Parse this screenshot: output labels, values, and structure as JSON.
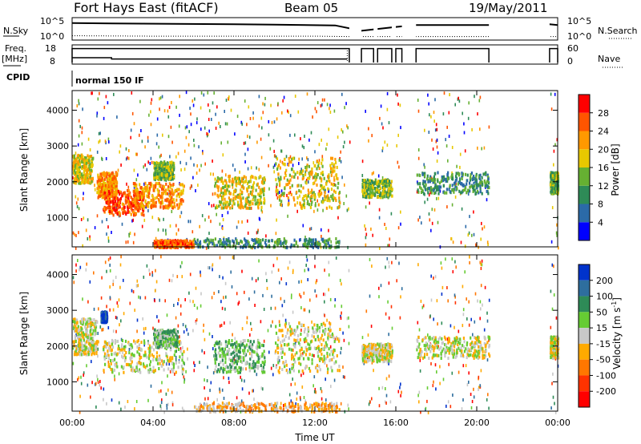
{
  "header": {
    "title": "Fort Hays East (fitACF)",
    "beam": "Beam 05",
    "date": "19/May/2011"
  },
  "top_panels": {
    "nsky_label": "N.Sky",
    "nsky_ticks": [
      "10^5",
      "10^0"
    ],
    "nsearch_label": "N.Search",
    "nsearch_ticks": [
      "10^5",
      "10^0"
    ],
    "freq_label": "Freq.",
    "freq_unit": "[MHz]",
    "freq_ticks": [
      "18",
      "8"
    ],
    "nave_label": "Nave",
    "nave_ticks": [
      "60",
      "0"
    ],
    "cpid_label": "CPID",
    "cpid_value": "normal 150 IF"
  },
  "colors": {
    "power": [
      "#0000ff",
      "#2b6aa8",
      "#2e8b57",
      "#66b032",
      "#e8c800",
      "#ff9900",
      "#ff5500",
      "#ff0000"
    ],
    "velocity": [
      "#0033cc",
      "#2e6e9e",
      "#2e8b57",
      "#66cc33",
      "#c8c8c8",
      "#ffaa00",
      "#ff7700",
      "#ff3300",
      "#ff0000"
    ]
  },
  "chart_data": [
    {
      "type": "line",
      "name": "sky-noise-search-noise",
      "x_unit": "UT hours",
      "data_gaps_hours": [
        [
          13.7,
          14.3
        ],
        [
          14.9,
          15.1
        ],
        [
          15.8,
          16.0
        ],
        [
          16.3,
          17.0
        ],
        [
          20.6,
          23.6
        ]
      ],
      "nsky_series": [
        [
          0,
          4.0
        ],
        [
          2,
          3.9
        ],
        [
          5,
          3.8
        ],
        [
          8,
          3.7
        ],
        [
          10,
          3.6
        ],
        [
          13,
          3.4
        ],
        [
          14.3,
          2.0
        ],
        [
          16,
          3.0
        ],
        [
          17,
          3.5
        ],
        [
          20.6,
          3.5
        ],
        [
          23.6,
          3.7
        ],
        [
          24,
          3.5
        ]
      ],
      "nsearch_series": [
        [
          0,
          0.7
        ],
        [
          4,
          0.6
        ],
        [
          8,
          0.6
        ],
        [
          12,
          0.6
        ],
        [
          13.6,
          0.5
        ],
        [
          24,
          0.5
        ]
      ]
    },
    {
      "type": "line",
      "name": "frequency-nave",
      "freq_mhz": [
        [
          0,
          11.0
        ],
        [
          1.95,
          11.0
        ],
        [
          1.95,
          10.2
        ],
        [
          13.6,
          10.2
        ]
      ],
      "nave": [
        [
          0,
          52
        ],
        [
          13.6,
          52
        ],
        [
          14.3,
          52
        ],
        [
          20.6,
          52
        ],
        [
          23.6,
          52
        ],
        [
          24,
          52
        ]
      ]
    },
    {
      "type": "heatmap",
      "name": "power-panel",
      "title": "",
      "xlabel": "",
      "ylabel": "Slant Range [km]",
      "xlim": [
        0,
        24
      ],
      "ylim": [
        180,
        4550
      ],
      "x_ticks": [
        "00:00",
        "04:00",
        "08:00",
        "12:00",
        "16:00",
        "20:00",
        "00:00"
      ],
      "y_ticks": [
        1000,
        2000,
        3000,
        4000
      ],
      "colorbar_label": "Power [dB]",
      "colorbar_ticks": [
        "4",
        "8",
        "12",
        "16",
        "20",
        "24",
        "28"
      ],
      "structures": [
        {
          "t": [
            0.0,
            1.0
          ],
          "r": [
            2000,
            2800
          ],
          "level": 4
        },
        {
          "t": [
            1.2,
            2.2
          ],
          "r": [
            1600,
            2300
          ],
          "level": 5
        },
        {
          "t": [
            1.5,
            3.5
          ],
          "r": [
            1100,
            1800
          ],
          "level": 6
        },
        {
          "t": [
            3.0,
            5.5
          ],
          "r": [
            1300,
            2000
          ],
          "level": 5
        },
        {
          "t": [
            4.0,
            5.0
          ],
          "r": [
            2100,
            2600
          ],
          "level": 3
        },
        {
          "t": [
            4.0,
            6.0
          ],
          "r": [
            200,
            400
          ],
          "level": 6
        },
        {
          "t": [
            7.0,
            9.5
          ],
          "r": [
            1300,
            2200
          ],
          "level": 4
        },
        {
          "t": [
            10.0,
            13.2
          ],
          "r": [
            1300,
            2700
          ],
          "level": 4
        },
        {
          "t": [
            6.0,
            13.2
          ],
          "r": [
            200,
            450
          ],
          "level": 2
        },
        {
          "t": [
            14.3,
            15.8
          ],
          "r": [
            1600,
            2100
          ],
          "level": 3
        },
        {
          "t": [
            17.0,
            20.6
          ],
          "r": [
            1700,
            2300
          ],
          "level": 2
        },
        {
          "t": [
            23.6,
            24.0
          ],
          "r": [
            1700,
            2300
          ],
          "level": 3
        }
      ]
    },
    {
      "type": "heatmap",
      "name": "velocity-panel",
      "title": "",
      "xlabel": "Time UT",
      "ylabel": "Slant Range [km]",
      "xlim": [
        0,
        24
      ],
      "ylim": [
        180,
        4550
      ],
      "x_ticks": [
        "00:00",
        "04:00",
        "08:00",
        "12:00",
        "16:00",
        "20:00",
        "00:00"
      ],
      "y_ticks": [
        1000,
        2000,
        3000,
        4000
      ],
      "colorbar_label": "Velocity [m s",
      "colorbar_exponent": "-1",
      "colorbar_ticks": [
        "200",
        "100",
        "50",
        "15",
        "-15",
        "-50",
        "-100",
        "-200"
      ],
      "structures": [
        {
          "t": [
            0.0,
            1.2
          ],
          "r": [
            1800,
            2800
          ],
          "level": 4
        },
        {
          "t": [
            1.4,
            1.7
          ],
          "r": [
            2700,
            3000
          ],
          "level": 0
        },
        {
          "t": [
            1.5,
            5.5
          ],
          "r": [
            1300,
            2200
          ],
          "level": 4
        },
        {
          "t": [
            4.0,
            5.2
          ],
          "r": [
            2000,
            2500
          ],
          "level": 3
        },
        {
          "t": [
            7.0,
            9.5
          ],
          "r": [
            1300,
            2200
          ],
          "level": 3
        },
        {
          "t": [
            10.0,
            13.2
          ],
          "r": [
            1300,
            2700
          ],
          "level": 4
        },
        {
          "t": [
            6.0,
            13.2
          ],
          "r": [
            200,
            450
          ],
          "level": 5
        },
        {
          "t": [
            14.3,
            15.8
          ],
          "r": [
            1600,
            2100
          ],
          "level": 4
        },
        {
          "t": [
            17.0,
            20.6
          ],
          "r": [
            1700,
            2300
          ],
          "level": 4
        },
        {
          "t": [
            23.6,
            24.0
          ],
          "r": [
            1700,
            2300
          ],
          "level": 4
        }
      ]
    }
  ]
}
